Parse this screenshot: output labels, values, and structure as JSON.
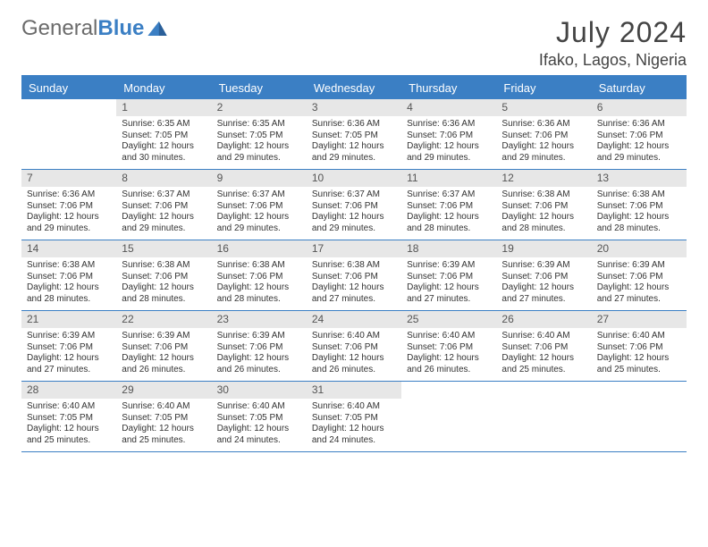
{
  "brand": {
    "text1": "General",
    "text2": "Blue"
  },
  "title": "July 2024",
  "location": "Ifako, Lagos, Nigeria",
  "colors": {
    "accent": "#3b7fc4",
    "dayHeaderBg": "#e7e7e7",
    "text": "#333333"
  },
  "dayHeaders": [
    "Sunday",
    "Monday",
    "Tuesday",
    "Wednesday",
    "Thursday",
    "Friday",
    "Saturday"
  ],
  "weeks": [
    [
      {
        "empty": true
      },
      {
        "n": "1",
        "sr": "Sunrise: 6:35 AM",
        "ss": "Sunset: 7:05 PM",
        "dl": "Daylight: 12 hours and 30 minutes."
      },
      {
        "n": "2",
        "sr": "Sunrise: 6:35 AM",
        "ss": "Sunset: 7:05 PM",
        "dl": "Daylight: 12 hours and 29 minutes."
      },
      {
        "n": "3",
        "sr": "Sunrise: 6:36 AM",
        "ss": "Sunset: 7:05 PM",
        "dl": "Daylight: 12 hours and 29 minutes."
      },
      {
        "n": "4",
        "sr": "Sunrise: 6:36 AM",
        "ss": "Sunset: 7:06 PM",
        "dl": "Daylight: 12 hours and 29 minutes."
      },
      {
        "n": "5",
        "sr": "Sunrise: 6:36 AM",
        "ss": "Sunset: 7:06 PM",
        "dl": "Daylight: 12 hours and 29 minutes."
      },
      {
        "n": "6",
        "sr": "Sunrise: 6:36 AM",
        "ss": "Sunset: 7:06 PM",
        "dl": "Daylight: 12 hours and 29 minutes."
      }
    ],
    [
      {
        "n": "7",
        "sr": "Sunrise: 6:36 AM",
        "ss": "Sunset: 7:06 PM",
        "dl": "Daylight: 12 hours and 29 minutes."
      },
      {
        "n": "8",
        "sr": "Sunrise: 6:37 AM",
        "ss": "Sunset: 7:06 PM",
        "dl": "Daylight: 12 hours and 29 minutes."
      },
      {
        "n": "9",
        "sr": "Sunrise: 6:37 AM",
        "ss": "Sunset: 7:06 PM",
        "dl": "Daylight: 12 hours and 29 minutes."
      },
      {
        "n": "10",
        "sr": "Sunrise: 6:37 AM",
        "ss": "Sunset: 7:06 PM",
        "dl": "Daylight: 12 hours and 29 minutes."
      },
      {
        "n": "11",
        "sr": "Sunrise: 6:37 AM",
        "ss": "Sunset: 7:06 PM",
        "dl": "Daylight: 12 hours and 28 minutes."
      },
      {
        "n": "12",
        "sr": "Sunrise: 6:38 AM",
        "ss": "Sunset: 7:06 PM",
        "dl": "Daylight: 12 hours and 28 minutes."
      },
      {
        "n": "13",
        "sr": "Sunrise: 6:38 AM",
        "ss": "Sunset: 7:06 PM",
        "dl": "Daylight: 12 hours and 28 minutes."
      }
    ],
    [
      {
        "n": "14",
        "sr": "Sunrise: 6:38 AM",
        "ss": "Sunset: 7:06 PM",
        "dl": "Daylight: 12 hours and 28 minutes."
      },
      {
        "n": "15",
        "sr": "Sunrise: 6:38 AM",
        "ss": "Sunset: 7:06 PM",
        "dl": "Daylight: 12 hours and 28 minutes."
      },
      {
        "n": "16",
        "sr": "Sunrise: 6:38 AM",
        "ss": "Sunset: 7:06 PM",
        "dl": "Daylight: 12 hours and 28 minutes."
      },
      {
        "n": "17",
        "sr": "Sunrise: 6:38 AM",
        "ss": "Sunset: 7:06 PM",
        "dl": "Daylight: 12 hours and 27 minutes."
      },
      {
        "n": "18",
        "sr": "Sunrise: 6:39 AM",
        "ss": "Sunset: 7:06 PM",
        "dl": "Daylight: 12 hours and 27 minutes."
      },
      {
        "n": "19",
        "sr": "Sunrise: 6:39 AM",
        "ss": "Sunset: 7:06 PM",
        "dl": "Daylight: 12 hours and 27 minutes."
      },
      {
        "n": "20",
        "sr": "Sunrise: 6:39 AM",
        "ss": "Sunset: 7:06 PM",
        "dl": "Daylight: 12 hours and 27 minutes."
      }
    ],
    [
      {
        "n": "21",
        "sr": "Sunrise: 6:39 AM",
        "ss": "Sunset: 7:06 PM",
        "dl": "Daylight: 12 hours and 27 minutes."
      },
      {
        "n": "22",
        "sr": "Sunrise: 6:39 AM",
        "ss": "Sunset: 7:06 PM",
        "dl": "Daylight: 12 hours and 26 minutes."
      },
      {
        "n": "23",
        "sr": "Sunrise: 6:39 AM",
        "ss": "Sunset: 7:06 PM",
        "dl": "Daylight: 12 hours and 26 minutes."
      },
      {
        "n": "24",
        "sr": "Sunrise: 6:40 AM",
        "ss": "Sunset: 7:06 PM",
        "dl": "Daylight: 12 hours and 26 minutes."
      },
      {
        "n": "25",
        "sr": "Sunrise: 6:40 AM",
        "ss": "Sunset: 7:06 PM",
        "dl": "Daylight: 12 hours and 26 minutes."
      },
      {
        "n": "26",
        "sr": "Sunrise: 6:40 AM",
        "ss": "Sunset: 7:06 PM",
        "dl": "Daylight: 12 hours and 25 minutes."
      },
      {
        "n": "27",
        "sr": "Sunrise: 6:40 AM",
        "ss": "Sunset: 7:06 PM",
        "dl": "Daylight: 12 hours and 25 minutes."
      }
    ],
    [
      {
        "n": "28",
        "sr": "Sunrise: 6:40 AM",
        "ss": "Sunset: 7:05 PM",
        "dl": "Daylight: 12 hours and 25 minutes."
      },
      {
        "n": "29",
        "sr": "Sunrise: 6:40 AM",
        "ss": "Sunset: 7:05 PM",
        "dl": "Daylight: 12 hours and 25 minutes."
      },
      {
        "n": "30",
        "sr": "Sunrise: 6:40 AM",
        "ss": "Sunset: 7:05 PM",
        "dl": "Daylight: 12 hours and 24 minutes."
      },
      {
        "n": "31",
        "sr": "Sunrise: 6:40 AM",
        "ss": "Sunset: 7:05 PM",
        "dl": "Daylight: 12 hours and 24 minutes."
      },
      {
        "empty": true
      },
      {
        "empty": true
      },
      {
        "empty": true
      }
    ]
  ]
}
